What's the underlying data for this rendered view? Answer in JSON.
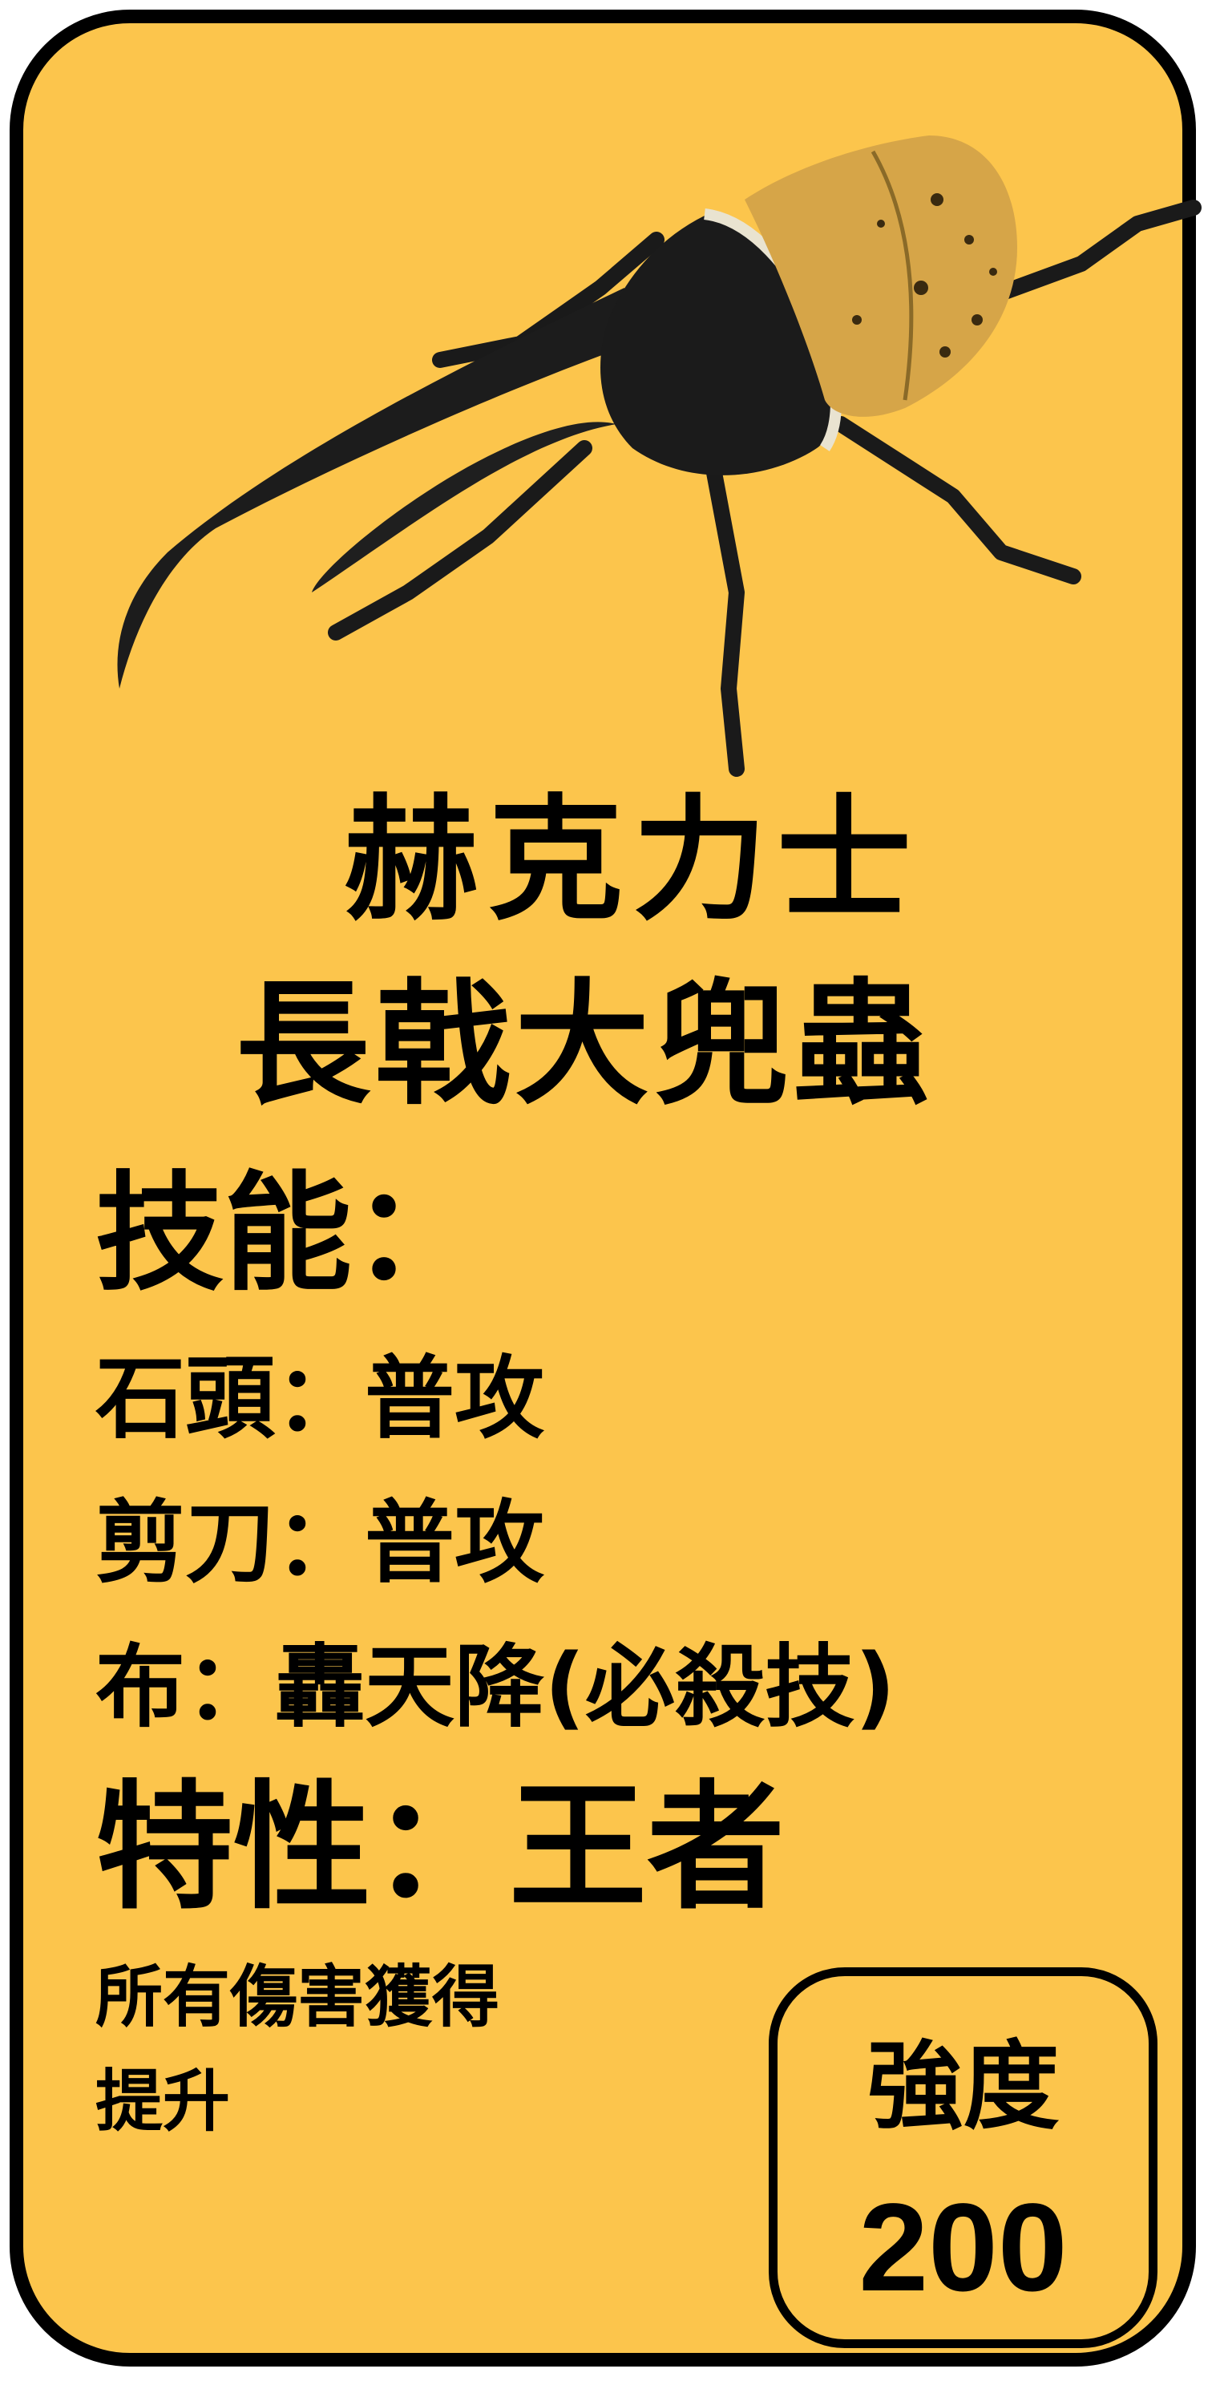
{
  "card": {
    "name_line1": "赫克力士",
    "name_line2": "長戟大兜蟲",
    "skills_heading": "技能：",
    "skills": [
      "石頭：普攻",
      "剪刀：普攻",
      "布：轟天降(必殺技)"
    ],
    "trait_heading": "特性：王者",
    "trait_description": [
      "所有傷害獲得",
      "提升"
    ],
    "strength": {
      "label": "強度",
      "value": "200"
    },
    "colors": {
      "background": "#fcc54c",
      "border": "#000000",
      "text": "#000000"
    }
  }
}
